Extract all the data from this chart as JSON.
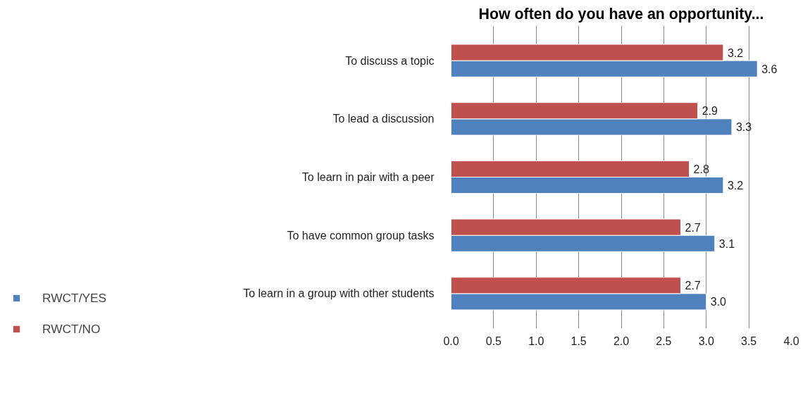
{
  "chart_data": {
    "type": "bar",
    "orientation": "horizontal",
    "title": "How often do you have an opportunity...",
    "categories": [
      "To discuss a topic",
      "To lead a discussion",
      "To learn in pair with a peer",
      "To have common group tasks",
      "To learn in a group with other students"
    ],
    "series": [
      {
        "name": "RWCT/YES",
        "color": "#4f81bd",
        "values": [
          3.6,
          3.3,
          3.2,
          3.1,
          3.0
        ],
        "value_labels": [
          "3.6",
          "3.3",
          "3.2",
          "3.1",
          "3.0"
        ]
      },
      {
        "name": "RWCT/NO",
        "color": "#c0504d",
        "values": [
          3.2,
          2.9,
          2.8,
          2.7,
          2.7
        ],
        "value_labels": [
          "3.2",
          "2.9",
          "2.8",
          "2.7",
          "2.7"
        ]
      }
    ],
    "xlim": [
      0,
      4
    ],
    "xticks": [
      {
        "value": 0,
        "label": "0.0"
      },
      {
        "value": 0.5,
        "label": "0.5"
      },
      {
        "value": 1,
        "label": "1.0"
      },
      {
        "value": 1.5,
        "label": "1.5"
      },
      {
        "value": 2,
        "label": "2.0"
      },
      {
        "value": 2.5,
        "label": "2.5"
      },
      {
        "value": 3,
        "label": "3.0"
      },
      {
        "value": 3.5,
        "label": "3.5"
      },
      {
        "value": 4,
        "label": "4.0"
      }
    ],
    "grid": "x",
    "legend": "bottom left"
  }
}
